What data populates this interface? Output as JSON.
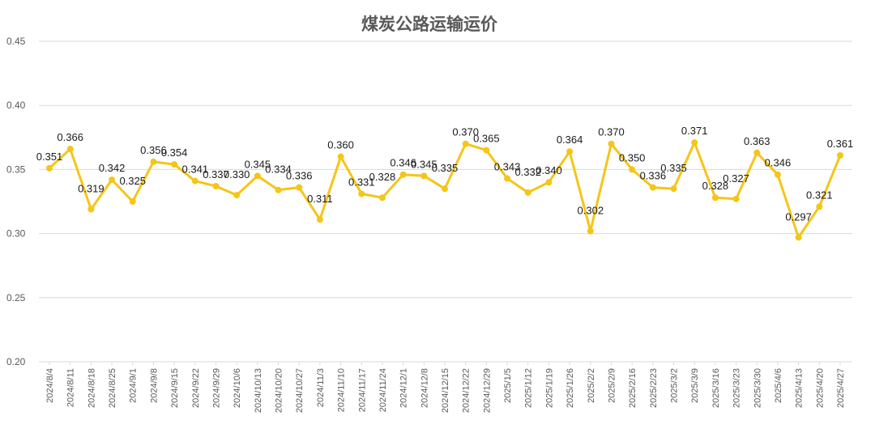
{
  "chart_data": {
    "type": "line",
    "title": "煤炭公路运输运价",
    "xlabel": "",
    "ylabel": "",
    "ylim": [
      0.2,
      0.45
    ],
    "yticks": [
      "0.20",
      "0.25",
      "0.30",
      "0.35",
      "0.40",
      "0.45"
    ],
    "grid": true,
    "legend": "none",
    "line_color": "#f5c518",
    "categories": [
      "2024/8/4",
      "2024/8/11",
      "2024/8/18",
      "2024/8/25",
      "2024/9/1",
      "2024/9/8",
      "2024/9/15",
      "2024/9/22",
      "2024/9/29",
      "2024/10/6",
      "2024/10/13",
      "2024/10/20",
      "2024/10/27",
      "2024/11/3",
      "2024/11/10",
      "2024/11/17",
      "2024/11/24",
      "2024/12/1",
      "2024/12/8",
      "2024/12/15",
      "2024/12/22",
      "2024/12/29",
      "2025/1/5",
      "2025/1/12",
      "2025/1/19",
      "2025/1/26",
      "2025/2/2",
      "2025/2/9",
      "2025/2/16",
      "2025/2/23",
      "2025/3/2",
      "2025/3/9",
      "2025/3/16",
      "2025/3/23",
      "2025/3/30",
      "2025/4/6",
      "2025/4/13",
      "2025/4/20",
      "2025/4/27"
    ],
    "series": [
      {
        "values": [
          0.351,
          0.366,
          0.319,
          0.342,
          0.325,
          0.356,
          0.354,
          0.341,
          0.337,
          0.33,
          0.345,
          0.334,
          0.336,
          0.311,
          0.36,
          0.331,
          0.328,
          0.346,
          0.345,
          0.335,
          0.37,
          0.365,
          0.343,
          0.332,
          0.34,
          0.364,
          0.302,
          0.37,
          0.35,
          0.336,
          0.335,
          0.371,
          0.328,
          0.327,
          0.363,
          0.346,
          0.297,
          0.321,
          0.361
        ],
        "labels": [
          "0.351",
          "0.366",
          "0.319",
          "0.342",
          "0.325",
          "0.356",
          "0.354",
          "0.341",
          "0.337",
          "0.330",
          "0.345",
          "0.334",
          "0.336",
          "0.311",
          "0.360",
          "0.331",
          "0.328",
          "0.346",
          "0.345",
          "0.335",
          "0.370",
          "0.365",
          "0.343",
          "0.332",
          "0.340",
          "0.364",
          "0.302",
          "0.370",
          "0.350",
          "0.336",
          "0.335",
          "0.371",
          "0.328",
          "0.327",
          "0.363",
          "0.346",
          "0.297",
          "0.321",
          "0.361"
        ]
      }
    ]
  }
}
